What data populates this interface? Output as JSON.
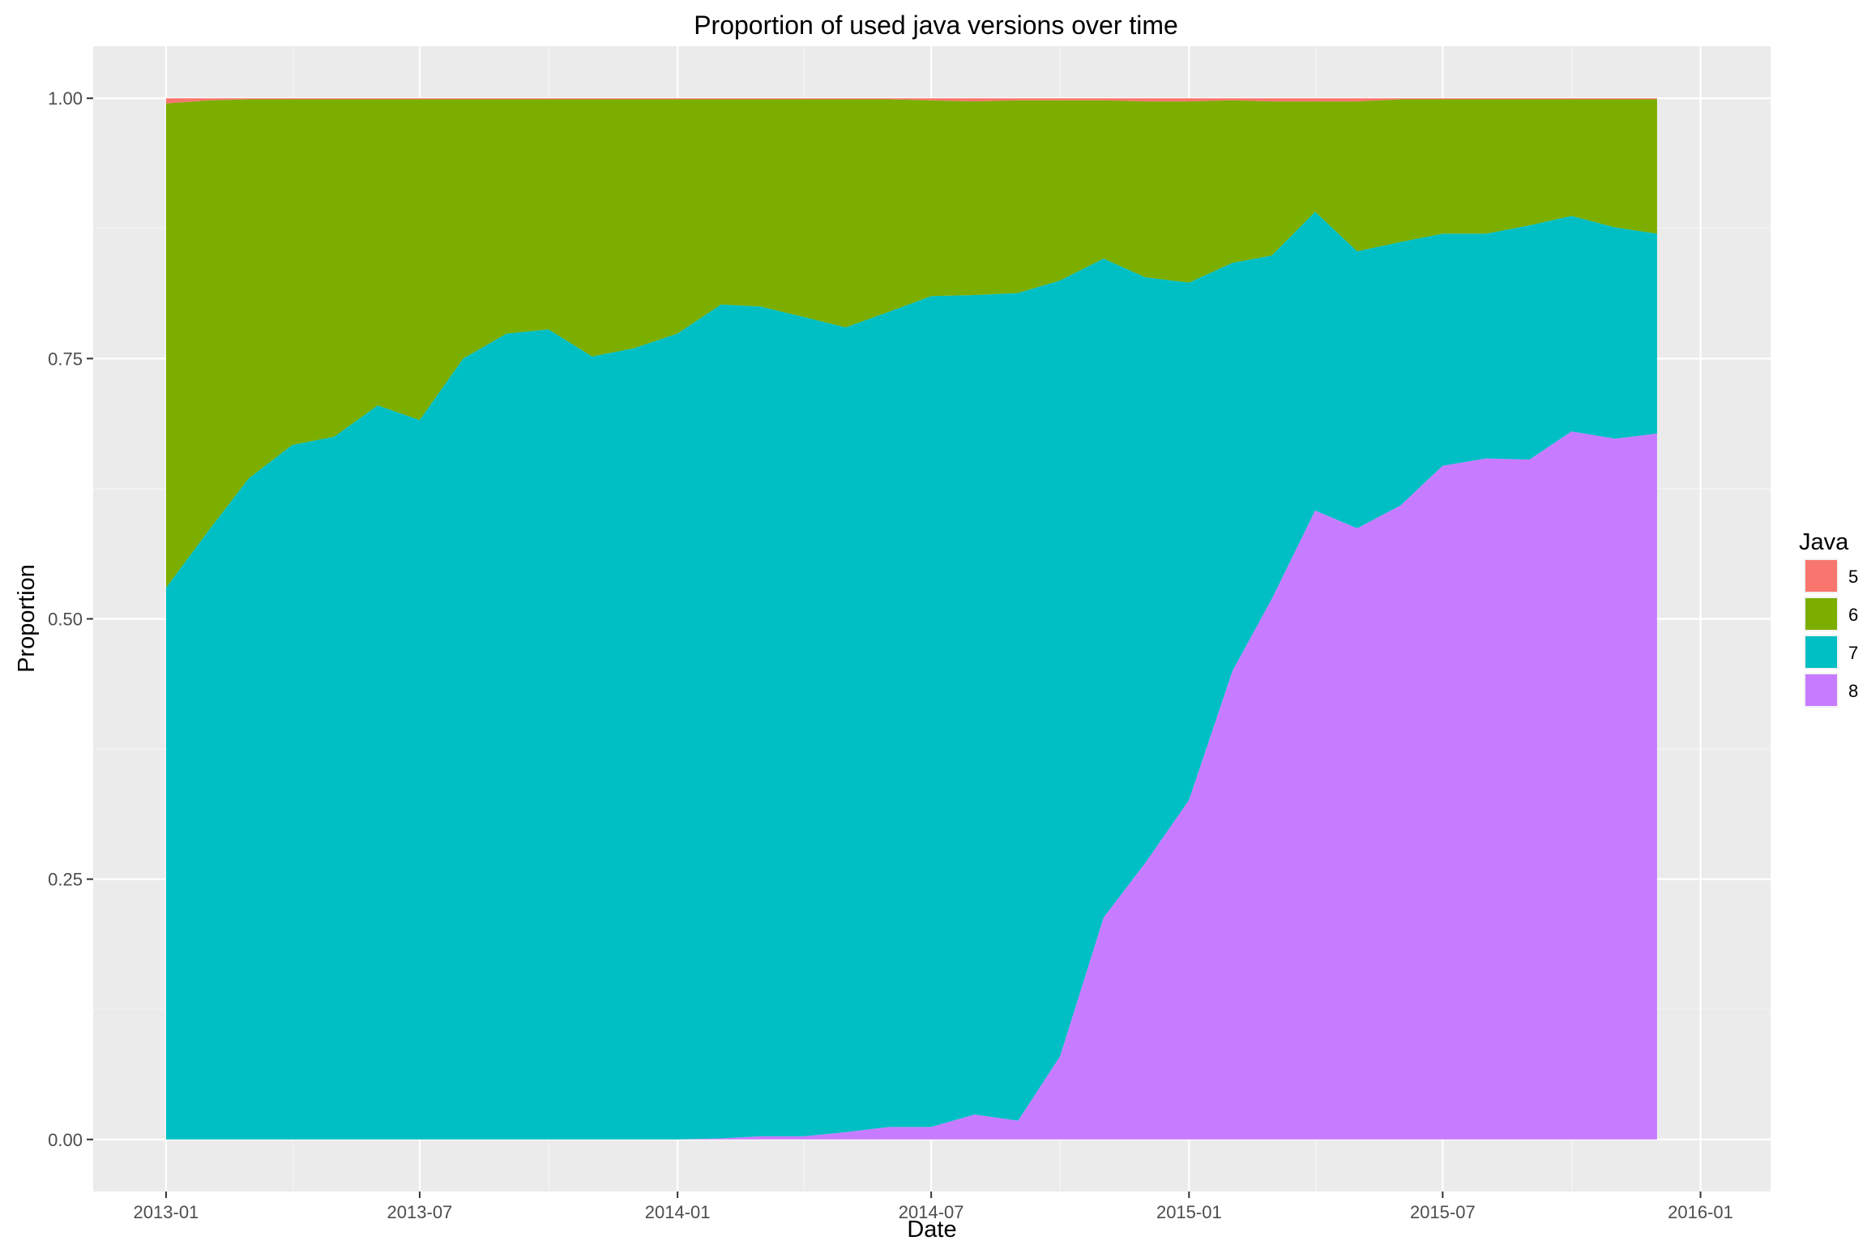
{
  "chart_data": {
    "type": "area",
    "stacked": true,
    "normalized": true,
    "title": "Proportion of used java versions over time",
    "xlabel": "Date",
    "ylabel": "Proportion",
    "x_ticks": [
      "2013-01",
      "2013-07",
      "2014-01",
      "2014-07",
      "2015-01",
      "2015-07",
      "2016-01"
    ],
    "y_ticks": [
      "0.00",
      "0.25",
      "0.50",
      "0.75",
      "1.00"
    ],
    "xlim": [
      "2012-11-10",
      "2016-02-20"
    ],
    "ylim": [
      -0.05,
      1.05
    ],
    "grid": true,
    "legend": {
      "title": "Java",
      "position": "right"
    },
    "x": [
      "2013-01",
      "2013-02",
      "2013-03",
      "2013-04",
      "2013-05",
      "2013-06",
      "2013-07",
      "2013-08",
      "2013-09",
      "2013-10",
      "2013-11",
      "2013-12",
      "2014-01",
      "2014-02",
      "2014-03",
      "2014-04",
      "2014-05",
      "2014-06",
      "2014-07",
      "2014-08",
      "2014-09",
      "2014-10",
      "2014-11",
      "2014-12",
      "2015-01",
      "2015-02",
      "2015-03",
      "2015-04",
      "2015-05",
      "2015-06",
      "2015-07",
      "2015-08",
      "2015-09",
      "2015-10",
      "2015-11",
      "2015-12"
    ],
    "series": [
      {
        "name": "5",
        "color": "#F8766D",
        "values": [
          0.005,
          0.002,
          0.001,
          0.001,
          0.001,
          0.001,
          0.001,
          0.001,
          0.001,
          0.001,
          0.001,
          0.001,
          0.001,
          0.001,
          0.001,
          0.001,
          0.001,
          0.001,
          0.002,
          0.003,
          0.002,
          0.002,
          0.002,
          0.003,
          0.003,
          0.002,
          0.003,
          0.003,
          0.003,
          0.001,
          0.001,
          0.001,
          0.001,
          0.001,
          0.001,
          0.001
        ]
      },
      {
        "name": "6",
        "color": "#7CAE00",
        "values": [
          0.465,
          0.412,
          0.364,
          0.332,
          0.324,
          0.294,
          0.308,
          0.249,
          0.225,
          0.221,
          0.247,
          0.239,
          0.225,
          0.197,
          0.199,
          0.209,
          0.219,
          0.204,
          0.188,
          0.186,
          0.185,
          0.173,
          0.152,
          0.169,
          0.174,
          0.156,
          0.148,
          0.106,
          0.144,
          0.137,
          0.129,
          0.129,
          0.121,
          0.112,
          0.123,
          0.129
        ]
      },
      {
        "name": "7",
        "color": "#00BFC4",
        "values": [
          0.53,
          0.586,
          0.635,
          0.667,
          0.675,
          0.705,
          0.691,
          0.75,
          0.774,
          0.778,
          0.752,
          0.76,
          0.774,
          0.801,
          0.797,
          0.787,
          0.773,
          0.783,
          0.798,
          0.787,
          0.795,
          0.745,
          0.633,
          0.562,
          0.497,
          0.392,
          0.33,
          0.287,
          0.266,
          0.253,
          0.223,
          0.216,
          0.225,
          0.207,
          0.203,
          0.192
        ]
      },
      {
        "name": "8",
        "color": "#C77CFF",
        "values": [
          0,
          0,
          0,
          0,
          0,
          0,
          0,
          0,
          0,
          0,
          0,
          0,
          0,
          0.001,
          0.003,
          0.003,
          0.007,
          0.012,
          0.012,
          0.024,
          0.018,
          0.08,
          0.213,
          0.266,
          0.326,
          0.45,
          0.519,
          0.604,
          0.587,
          0.609,
          0.647,
          0.654,
          0.653,
          0.68,
          0.673,
          0.678
        ]
      }
    ]
  }
}
